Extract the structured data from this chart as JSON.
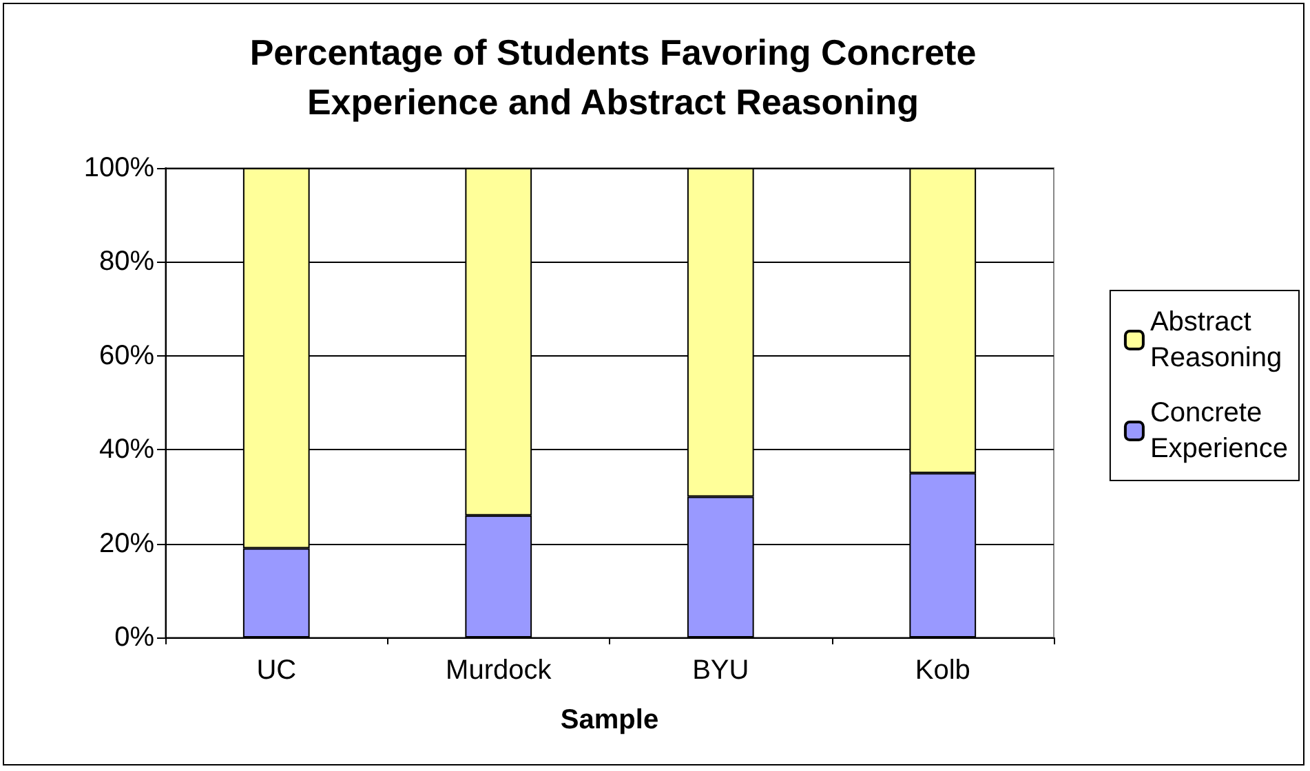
{
  "chart_data": {
    "type": "bar",
    "title": "Percentage of Students Favoring Concrete\nExperience and Abstract Reasoning",
    "xlabel": "Sample",
    "categories": [
      "UC",
      "Murdock",
      "BYU",
      "Kolb"
    ],
    "series": [
      {
        "name": "Concrete\nExperience",
        "color": "#9999ff",
        "values": [
          19,
          26,
          30,
          35
        ]
      },
      {
        "name": "Abstract\nReasoning",
        "color": "#ffff99",
        "values": [
          81,
          74,
          70,
          65
        ]
      }
    ],
    "stacked": true,
    "ylim": [
      0,
      100
    ],
    "yticks": [
      {
        "value": 0,
        "label": "0%"
      },
      {
        "value": 20,
        "label": "20%"
      },
      {
        "value": 40,
        "label": "40%"
      },
      {
        "value": 60,
        "label": "60%"
      },
      {
        "value": 80,
        "label": "80%"
      },
      {
        "value": 100,
        "label": "100%"
      }
    ],
    "grid": "y",
    "legend": "right"
  }
}
